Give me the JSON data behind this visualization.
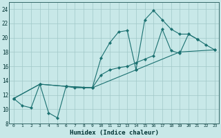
{
  "xlabel": "Humidex (Indice chaleur)",
  "xlim": [
    -0.5,
    23.5
  ],
  "ylim": [
    8,
    25
  ],
  "yticks": [
    8,
    10,
    12,
    14,
    16,
    18,
    20,
    22,
    24
  ],
  "xticks": [
    0,
    1,
    2,
    3,
    4,
    5,
    6,
    7,
    8,
    9,
    10,
    11,
    12,
    13,
    14,
    15,
    16,
    17,
    18,
    19,
    20,
    21,
    22,
    23
  ],
  "background_color": "#c8e8e8",
  "grid_color": "#a0c8c8",
  "line_color": "#1a7070",
  "line1_x": [
    0,
    1,
    2,
    3,
    4,
    5,
    6,
    7,
    8,
    9,
    10,
    11,
    12,
    13,
    14,
    15,
    16,
    17,
    18,
    19,
    20,
    21
  ],
  "line1_y": [
    11.5,
    10.5,
    10.2,
    13.5,
    9.5,
    8.8,
    13.2,
    13.0,
    13.0,
    13.0,
    17.2,
    19.3,
    20.8,
    21.0,
    15.5,
    22.5,
    23.8,
    22.5,
    21.2,
    20.5,
    20.5,
    19.8
  ],
  "line2_x": [
    0,
    3,
    6,
    9,
    10,
    11,
    12,
    13,
    14,
    15,
    16,
    17,
    18,
    19,
    20,
    21,
    22,
    23
  ],
  "line2_y": [
    11.5,
    13.5,
    13.2,
    13.0,
    14.8,
    15.5,
    15.8,
    16.0,
    16.5,
    17.0,
    17.5,
    21.2,
    18.2,
    17.8,
    20.5,
    19.8,
    19.0,
    18.3
  ],
  "line3_x": [
    0,
    3,
    6,
    9,
    14,
    19,
    23
  ],
  "line3_y": [
    11.5,
    13.5,
    13.2,
    13.0,
    15.5,
    18.0,
    18.3
  ]
}
